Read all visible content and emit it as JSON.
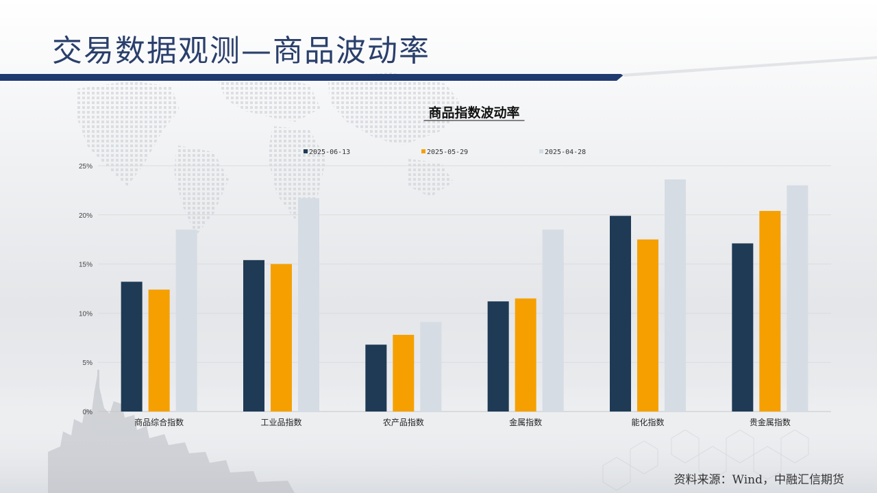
{
  "slide": {
    "title": "交易数据观测—商品波动率",
    "source": "资料来源：Wind，中融汇信期货"
  },
  "colors": {
    "series_1": "#1f3a55",
    "series_2": "#f5a000",
    "series_3": "#d6dce4",
    "header_bar": "#1f3a6e",
    "title_text": "#2a3f6b"
  },
  "chart_data": {
    "type": "bar",
    "title": "商品指数波动率",
    "categories": [
      "商品综合指数",
      "工业品指数",
      "农产品指数",
      "金属指数",
      "能化指数",
      "贵金属指数"
    ],
    "series": [
      {
        "name": "2025-06-13",
        "values": [
          13.2,
          15.4,
          6.8,
          11.2,
          19.9,
          17.1
        ]
      },
      {
        "name": "2025-05-29",
        "values": [
          12.4,
          15.0,
          7.8,
          11.5,
          17.5,
          20.4
        ]
      },
      {
        "name": "2025-04-28",
        "values": [
          18.5,
          21.7,
          9.1,
          18.5,
          23.6,
          23.0
        ]
      }
    ],
    "ylim": [
      0,
      25
    ],
    "yticks": [
      0,
      5,
      10,
      15,
      20,
      25
    ],
    "ytick_labels": [
      "0%",
      "5%",
      "10%",
      "15%",
      "20%",
      "25%"
    ],
    "grid": true,
    "legend_position": "top"
  }
}
